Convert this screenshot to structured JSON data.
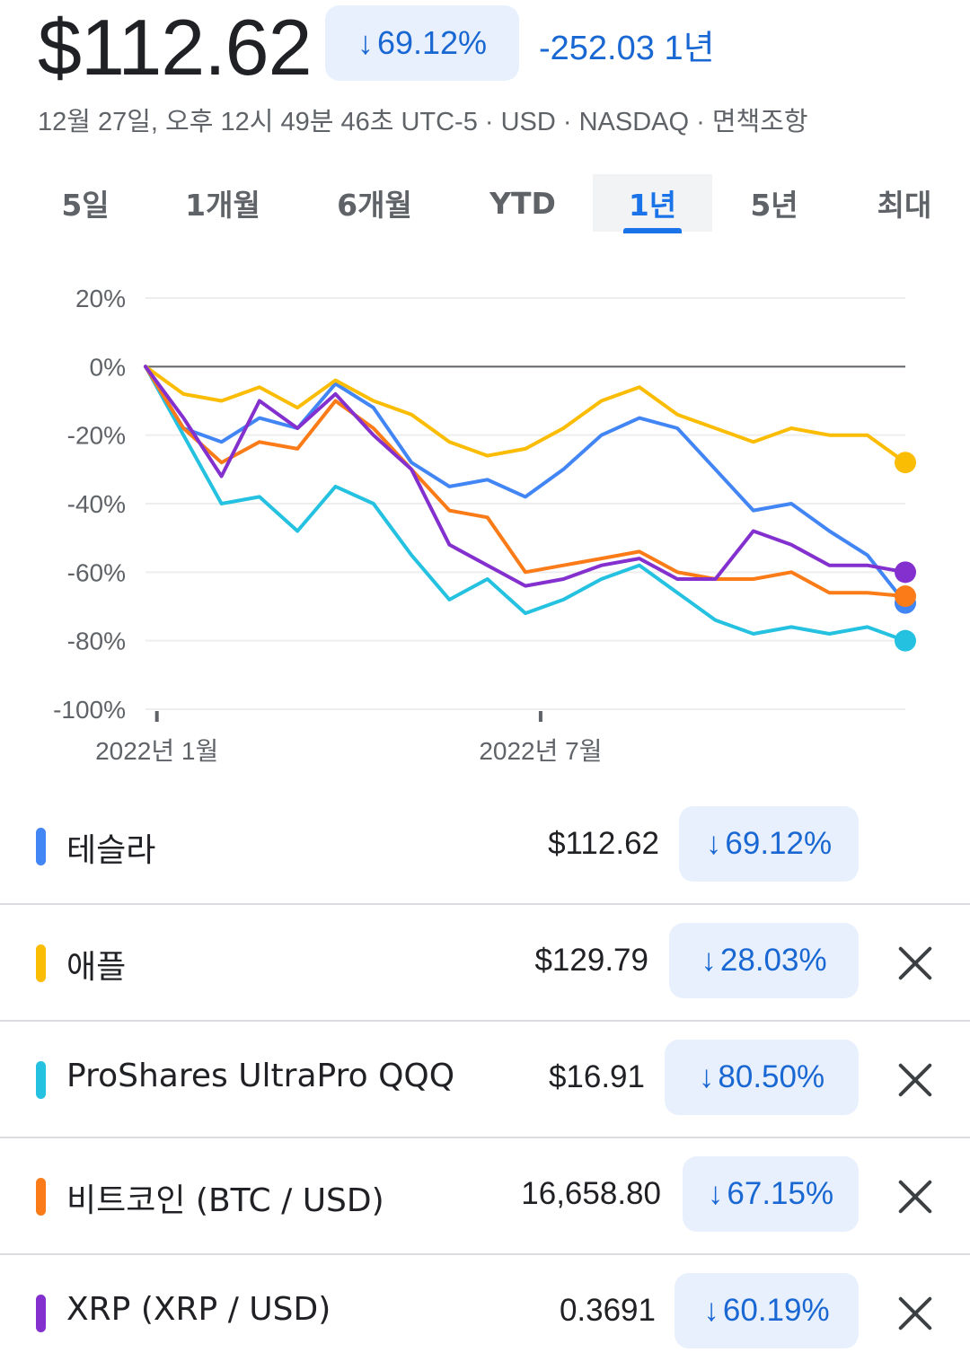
{
  "header": {
    "price": "$112.62",
    "change_pct": "69.12%",
    "change_abs": "-252.03 1년",
    "meta": "12월 27일, 오후 12시 49분 46초 UTC-5 · USD · NASDAQ · 면책조항",
    "down_arrow": "↓"
  },
  "tabs": [
    {
      "label": "5일"
    },
    {
      "label": "1개월"
    },
    {
      "label": "6개월"
    },
    {
      "label": "YTD"
    },
    {
      "label": "1년"
    },
    {
      "label": "5년"
    },
    {
      "label": "최대"
    }
  ],
  "selected_tab": "1년",
  "chart_data": {
    "type": "line",
    "title": "",
    "xlabel": "",
    "ylabel": "",
    "ylim": [
      -100,
      20
    ],
    "yticks": [
      "20%",
      "0%",
      "-20%",
      "-40%",
      "-60%",
      "-80%",
      "-100%"
    ],
    "ytick_values": [
      20,
      0,
      -20,
      -40,
      -60,
      -80,
      -100
    ],
    "xticks": [
      "2022년 1월",
      "2022년 7월"
    ],
    "xtick_positions": [
      0.015,
      0.52
    ],
    "baseline": 0,
    "grid": true,
    "legend": "below",
    "x": [
      0,
      0.05,
      0.1,
      0.15,
      0.2,
      0.25,
      0.3,
      0.35,
      0.4,
      0.45,
      0.5,
      0.55,
      0.6,
      0.65,
      0.7,
      0.75,
      0.8,
      0.85,
      0.9,
      0.95,
      1.0
    ],
    "series": [
      {
        "name": "테슬라",
        "color": "#4285f4",
        "values": [
          0,
          -18,
          -22,
          -15,
          -18,
          -5,
          -12,
          -28,
          -35,
          -33,
          -38,
          -30,
          -20,
          -15,
          -18,
          -30,
          -42,
          -40,
          -48,
          -55,
          -69
        ]
      },
      {
        "name": "애플",
        "color": "#fbbc04",
        "values": [
          0,
          -8,
          -10,
          -6,
          -12,
          -4,
          -10,
          -14,
          -22,
          -26,
          -24,
          -18,
          -10,
          -6,
          -14,
          -18,
          -22,
          -18,
          -20,
          -20,
          -28
        ]
      },
      {
        "name": "ProShares UltraPro QQQ",
        "color": "#24c1e0",
        "values": [
          0,
          -20,
          -40,
          -38,
          -48,
          -35,
          -40,
          -55,
          -68,
          -62,
          -72,
          -68,
          -62,
          -58,
          -66,
          -74,
          -78,
          -76,
          -78,
          -76,
          -80
        ]
      },
      {
        "name": "비트코인 (BTC / USD)",
        "color": "#fa7b17",
        "values": [
          0,
          -18,
          -28,
          -22,
          -24,
          -10,
          -18,
          -30,
          -42,
          -44,
          -60,
          -58,
          -56,
          -54,
          -60,
          -62,
          -62,
          -60,
          -66,
          -66,
          -67
        ]
      },
      {
        "name": "XRP (XRP / USD)",
        "color": "#8430ce",
        "values": [
          0,
          -15,
          -32,
          -10,
          -18,
          -8,
          -20,
          -30,
          -52,
          -58,
          -64,
          -62,
          -58,
          -56,
          -62,
          -62,
          -48,
          -52,
          -58,
          -58,
          -60
        ]
      }
    ]
  },
  "legend_rows": [
    {
      "name": "테슬라",
      "price": "$112.62",
      "pct": "69.12%",
      "color": "#4285f4",
      "removable": false
    },
    {
      "name": "애플",
      "price": "$129.79",
      "pct": "28.03%",
      "color": "#fbbc04",
      "removable": true
    },
    {
      "name": "ProShares UltraPro QQQ",
      "price": "$16.91",
      "pct": "80.50%",
      "color": "#24c1e0",
      "removable": true
    },
    {
      "name": "비트코인 (BTC / USD)",
      "price": "16,658.80",
      "pct": "67.15%",
      "color": "#fa7b17",
      "removable": true
    },
    {
      "name": "XRP (XRP / USD)",
      "price": "0.3691",
      "pct": "60.19%",
      "color": "#8430ce",
      "removable": true
    }
  ],
  "icons": {
    "close": "close-icon",
    "down": "arrow-down-icon"
  }
}
